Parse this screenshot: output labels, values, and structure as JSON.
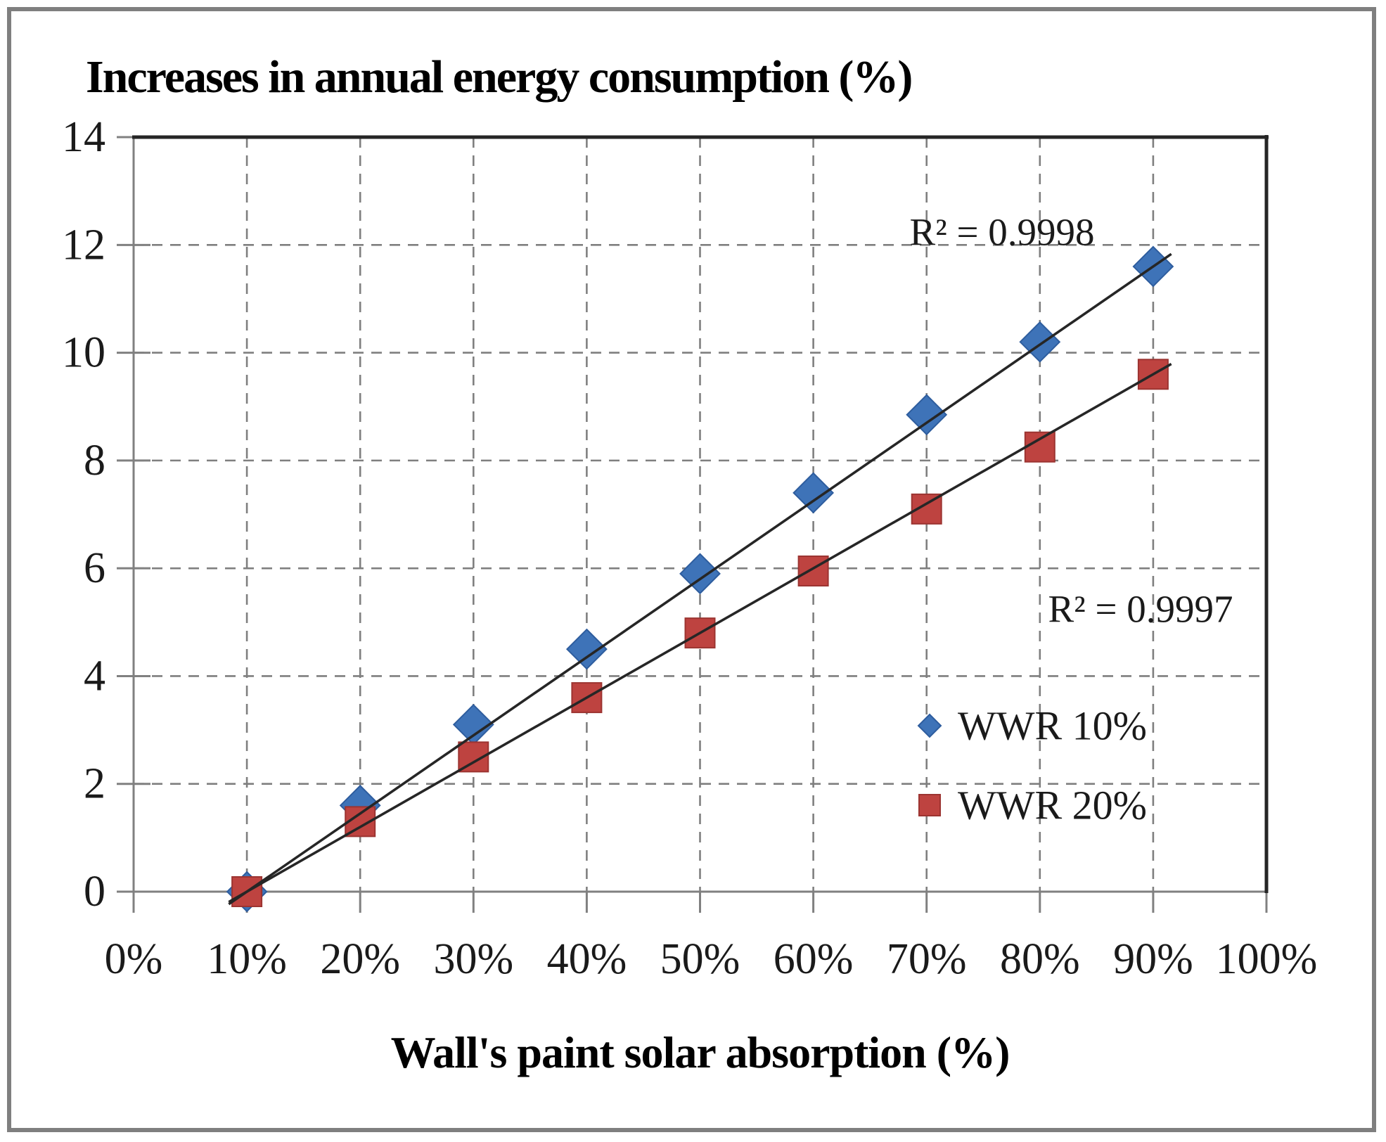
{
  "chart_data": {
    "type": "scatter",
    "title": "Increases in annual energy consumption (%)",
    "xlabel": "Wall's paint solar absorption (%)",
    "x_percent": [
      10,
      20,
      30,
      40,
      50,
      60,
      70,
      80,
      90
    ],
    "series": [
      {
        "name": "WWR 10%",
        "marker": "diamond",
        "color": "#3E73B8",
        "edge_color": "#2E5D9E",
        "values": [
          0,
          1.6,
          3.1,
          4.5,
          5.9,
          7.4,
          8.85,
          10.2,
          11.6
        ],
        "trendline": true,
        "trendline_r2": "R² = 0.9998"
      },
      {
        "name": "WWR 20%",
        "marker": "square",
        "color": "#BE4340",
        "edge_color": "#9C3431",
        "values": [
          0,
          1.3,
          2.5,
          3.6,
          4.8,
          5.95,
          7.1,
          8.25,
          9.6
        ],
        "trendline": true,
        "trendline_r2": "R² = 0.9997"
      }
    ],
    "x_ticks": [
      "0%",
      "10%",
      "20%",
      "30%",
      "40%",
      "50%",
      "60%",
      "70%",
      "80%",
      "90%",
      "100%"
    ],
    "y_ticks": [
      0,
      2,
      4,
      6,
      8,
      10,
      12,
      14
    ],
    "xlim": [
      0,
      100
    ],
    "ylim": [
      0,
      14
    ],
    "grid": "dashed-gray",
    "gridline_color": "#7f7f7f",
    "axis_color": "#808080",
    "plot_border_color": "#262626",
    "trendline_color": "#262626",
    "legend_position": "inside-right",
    "legend_labels": [
      "WWR 10%",
      "WWR 20%"
    ]
  }
}
